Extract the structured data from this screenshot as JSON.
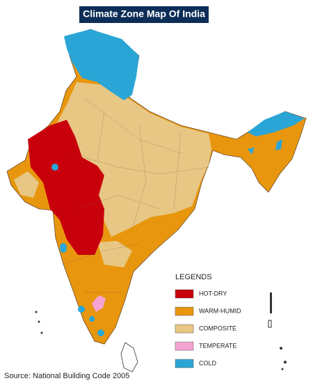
{
  "title": "Climate Zone Map Of India",
  "legend": {
    "title": "LEGENDS",
    "items": [
      {
        "label": "HOT-DRY",
        "color": "#c8000c"
      },
      {
        "label": "WARM-HUMID",
        "color": "#e8960e"
      },
      {
        "label": "COMPOSITE",
        "color": "#e8c784"
      },
      {
        "label": "TEMPERATE",
        "color": "#f5a3d3"
      },
      {
        "label": "COLD",
        "color": "#2aa6d6"
      }
    ]
  },
  "source": "Source: National Building Code 2005"
}
